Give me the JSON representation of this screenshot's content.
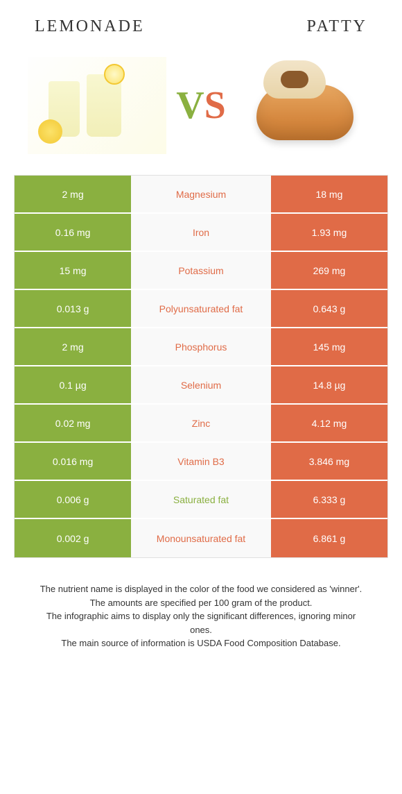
{
  "header": {
    "left_title": "Lemonade",
    "right_title": "Patty"
  },
  "vs": {
    "v": "V",
    "s": "S"
  },
  "colors": {
    "green": "#8ab040",
    "orange": "#e06b47",
    "row_bg": "#f9f9f9",
    "border": "#e0e0e0"
  },
  "rows": [
    {
      "left": "2 mg",
      "label": "Magnesium",
      "right": "18 mg",
      "winner": "orange"
    },
    {
      "left": "0.16 mg",
      "label": "Iron",
      "right": "1.93 mg",
      "winner": "orange"
    },
    {
      "left": "15 mg",
      "label": "Potassium",
      "right": "269 mg",
      "winner": "orange"
    },
    {
      "left": "0.013 g",
      "label": "Polyunsaturated fat",
      "right": "0.643 g",
      "winner": "orange"
    },
    {
      "left": "2 mg",
      "label": "Phosphorus",
      "right": "145 mg",
      "winner": "orange"
    },
    {
      "left": "0.1 µg",
      "label": "Selenium",
      "right": "14.8 µg",
      "winner": "orange"
    },
    {
      "left": "0.02 mg",
      "label": "Zinc",
      "right": "4.12 mg",
      "winner": "orange"
    },
    {
      "left": "0.016 mg",
      "label": "Vitamin B3",
      "right": "3.846 mg",
      "winner": "orange"
    },
    {
      "left": "0.006 g",
      "label": "Saturated fat",
      "right": "6.333 g",
      "winner": "green"
    },
    {
      "left": "0.002 g",
      "label": "Monounsaturated fat",
      "right": "6.861 g",
      "winner": "orange"
    }
  ],
  "footer": {
    "line1": "The nutrient name is displayed in the color of the food we considered as 'winner'.",
    "line2": "The amounts are specified per 100 gram of the product.",
    "line3": "The infographic aims to display only the significant differences, ignoring minor ones.",
    "line4": "The main source of information is USDA Food Composition Database."
  }
}
